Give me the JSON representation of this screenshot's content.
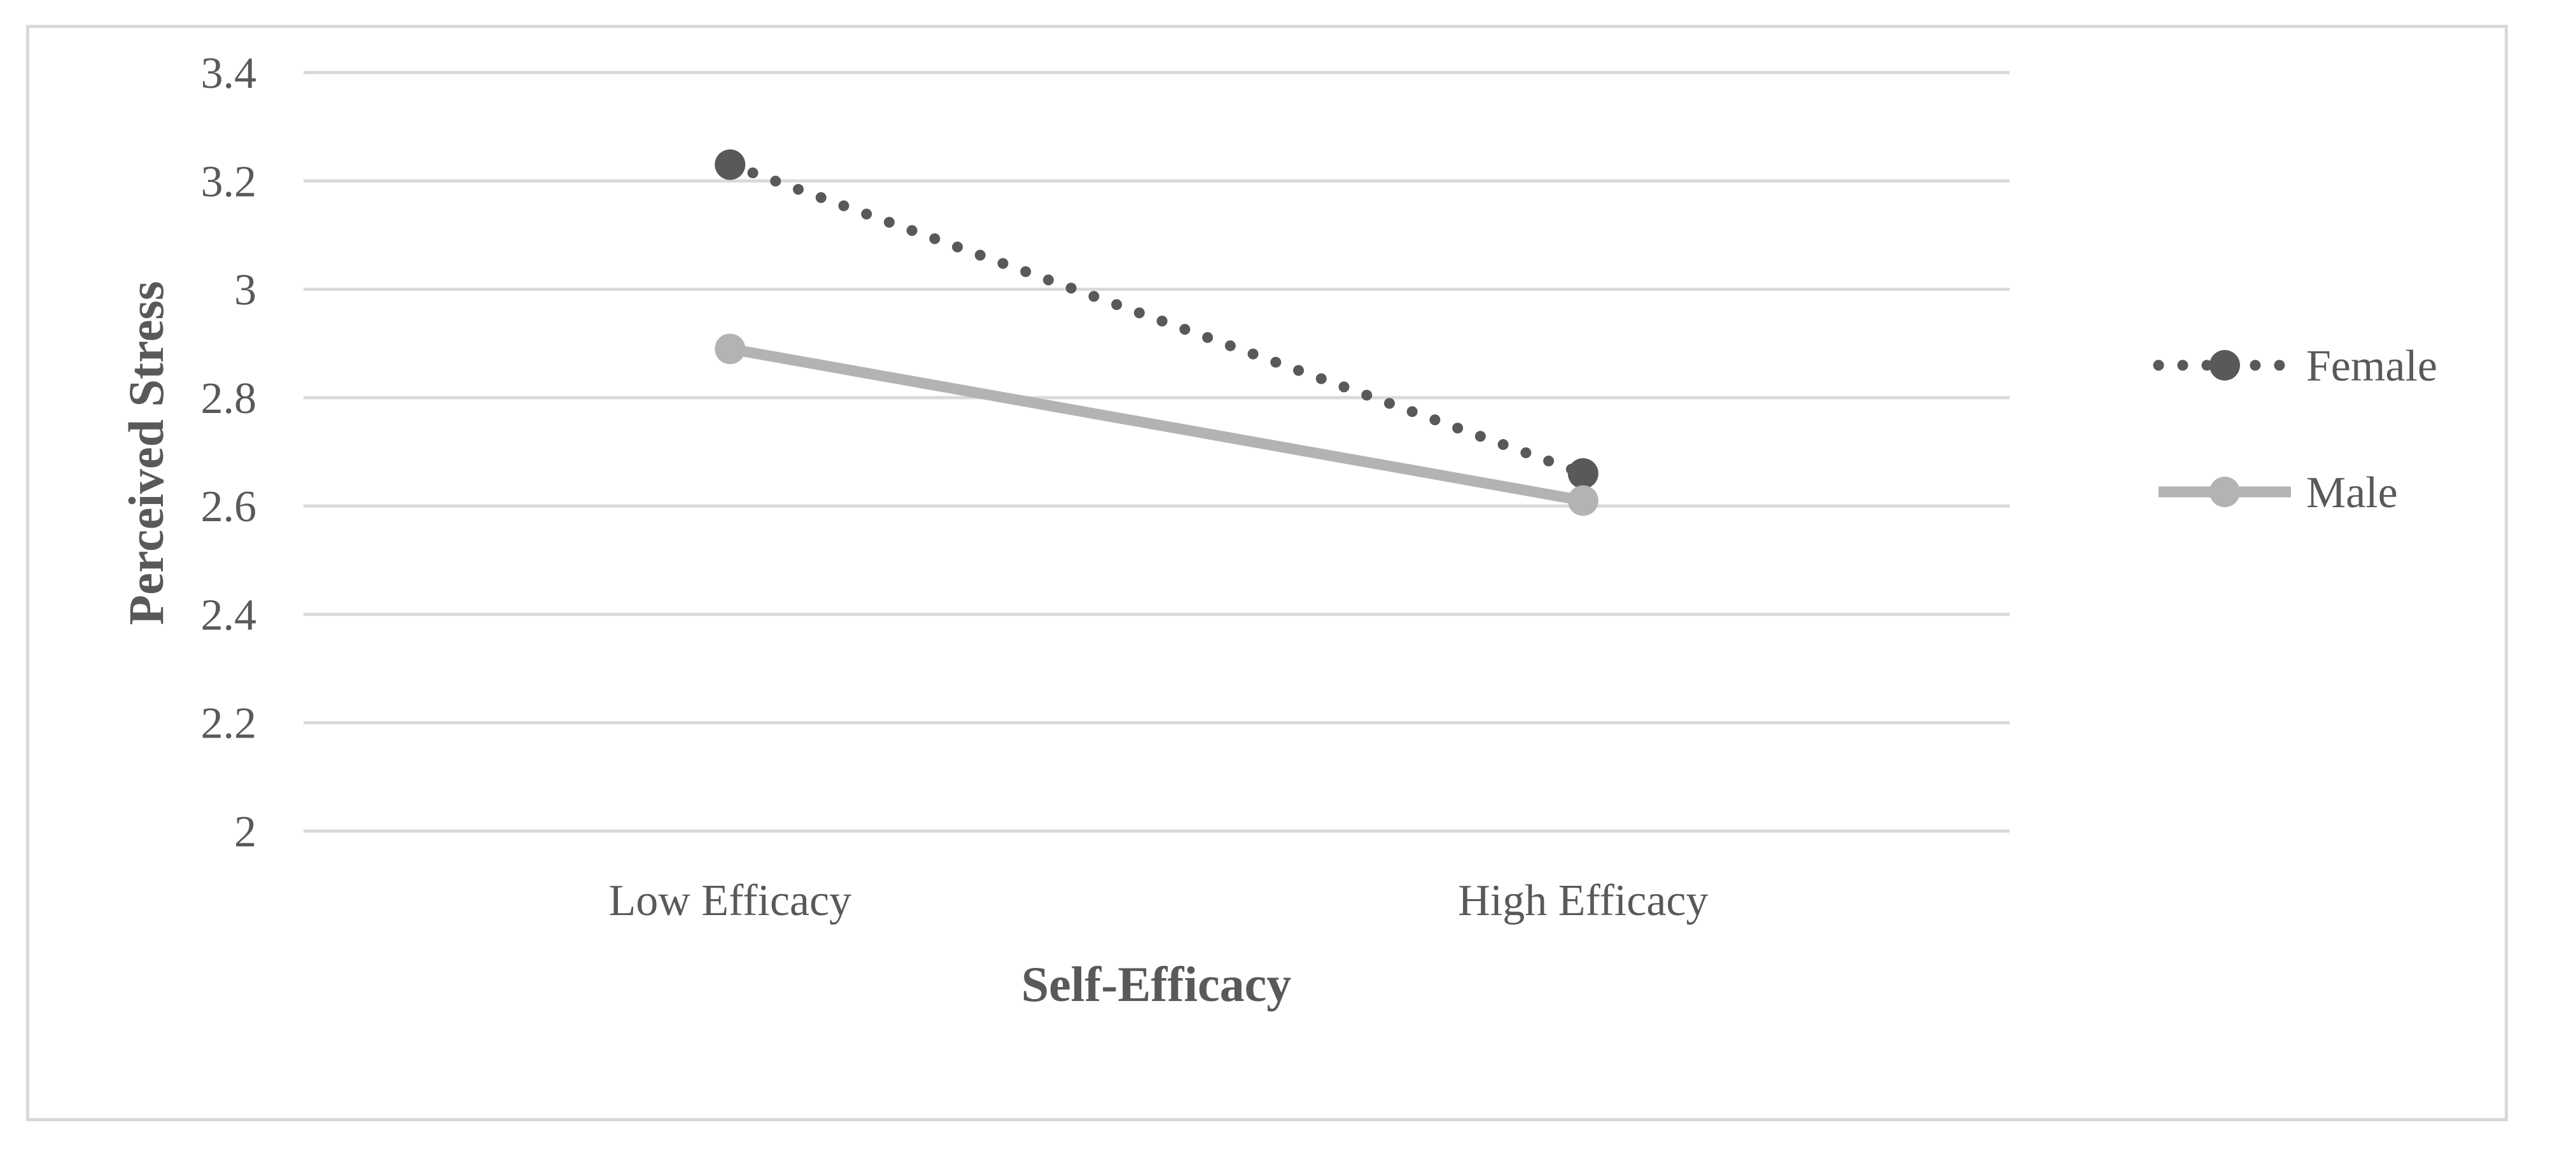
{
  "chart_data": {
    "type": "line",
    "categories": [
      "Low Efficacy",
      "High Efficacy"
    ],
    "series": [
      {
        "name": "Female",
        "values": [
          3.23,
          2.66
        ],
        "color": "#595959",
        "line_style": "dotted"
      },
      {
        "name": "Male",
        "values": [
          2.89,
          2.61
        ],
        "color": "#b3b3b3",
        "line_style": "solid"
      }
    ],
    "xlabel": "Self-Efficacy",
    "ylabel": "Perceived Stress",
    "ylim": [
      2,
      3.4
    ],
    "yticks": [
      "2",
      "2.2",
      "2.4",
      "2.6",
      "2.8",
      "3",
      "3.2",
      "3.4"
    ],
    "grid": true,
    "legend_position": "right",
    "gridline_color": "#d9d9d9"
  }
}
